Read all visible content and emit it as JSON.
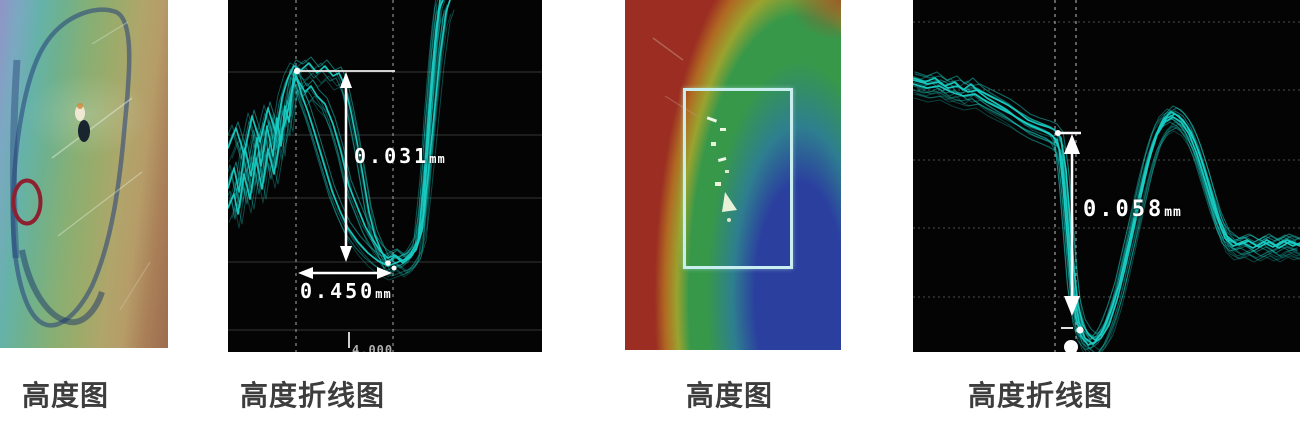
{
  "page": {
    "background": "#ffffff",
    "description_labels": "measurement figure collage"
  },
  "captions": [
    {
      "text": "高度图"
    },
    {
      "text": "高度折线图"
    },
    {
      "text": "高度图"
    },
    {
      "text": "高度折线图"
    }
  ],
  "colors": {
    "trace": "#19cdc4",
    "grid_solid": "#343836",
    "grid_dashed": "#4a4f4d",
    "grid_vline": "#9aa0a0",
    "measure_white": "#ffffff",
    "defect_ellipse_red": "#8e2130",
    "roi_rect_cyan": "#c8eef0",
    "caption_gray": "#3d3d3d"
  },
  "chart_data": [
    {
      "type": "heatmap",
      "title": "高度图",
      "description": "Pseudo-color surface height map of a part; left-to-right color bands from purple/blue through green to tan/brown; dark outline of component visible; red ellipse marks defect location on left edge",
      "annotations": [
        {
          "kind": "defect-ellipse",
          "color": "#8e2130"
        }
      ]
    },
    {
      "type": "line",
      "svg": "profile-svg-left",
      "title": "高度折线图",
      "description": "Overlaid cyan surface-height profile traces across a groove defect on black background; step depth and groove width are annotated",
      "trace_color": "#19cdc4",
      "grid": {
        "h_solid": [
          72,
          135,
          198,
          262,
          330
        ],
        "v_dashed": [
          68,
          165
        ],
        "color_solid": "#343836",
        "color_dashed": "#4a4f4d",
        "color_vline": "#8a8f8d"
      },
      "measurements": [
        {
          "kind": "vertical-step-height",
          "value": "0.031",
          "unit": "mm"
        },
        {
          "kind": "horizontal-width",
          "value": "0.450",
          "unit": "mm"
        }
      ],
      "x_tick_label": "4.000",
      "traces": [
        [
          [
            0,
            188
          ],
          [
            6,
            168
          ],
          [
            11,
            192
          ],
          [
            17,
            148
          ],
          [
            23,
            176
          ],
          [
            29,
            138
          ],
          [
            33,
            166
          ],
          [
            39,
            126
          ],
          [
            45,
            156
          ],
          [
            49,
            118
          ],
          [
            53,
            146
          ],
          [
            57,
            106
          ],
          [
            61,
            122
          ],
          [
            66,
            72
          ],
          [
            71,
            82
          ],
          [
            77,
            92
          ],
          [
            83,
            86
          ],
          [
            89,
            96
          ],
          [
            97,
            104
          ],
          [
            105,
            124
          ],
          [
            113,
            152
          ],
          [
            121,
            186
          ],
          [
            129,
            206
          ],
          [
            137,
            226
          ],
          [
            145,
            240
          ],
          [
            153,
            252
          ],
          [
            160,
            258
          ],
          [
            167,
            255
          ],
          [
            175,
            261
          ],
          [
            183,
            253
          ],
          [
            190,
            241
          ],
          [
            196,
            182
          ],
          [
            200,
            122
          ],
          [
            204,
            72
          ],
          [
            208,
            30
          ],
          [
            212,
            0
          ]
        ],
        [
          [
            0,
            148
          ],
          [
            8,
            128
          ],
          [
            16,
            154
          ],
          [
            24,
            116
          ],
          [
            32,
            142
          ],
          [
            40,
            108
          ],
          [
            48,
            134
          ],
          [
            54,
            98
          ],
          [
            60,
            78
          ],
          [
            66,
            66
          ],
          [
            73,
            70
          ],
          [
            81,
            63
          ],
          [
            89,
            73
          ],
          [
            97,
            66
          ],
          [
            105,
            76
          ],
          [
            111,
            73
          ],
          [
            117,
            86
          ],
          [
            123,
            112
          ],
          [
            129,
            142
          ],
          [
            135,
            176
          ],
          [
            141,
            212
          ],
          [
            147,
            236
          ],
          [
            153,
            250
          ],
          [
            159,
            263
          ],
          [
            167,
            256
          ],
          [
            175,
            263
          ],
          [
            183,
            257
          ],
          [
            189,
            247
          ],
          [
            195,
            216
          ],
          [
            199,
            160
          ],
          [
            203,
            100
          ],
          [
            207,
            46
          ],
          [
            211,
            10
          ],
          [
            215,
            0
          ]
        ],
        [
          [
            0,
            208
          ],
          [
            6,
            194
          ],
          [
            10,
            214
          ],
          [
            16,
            174
          ],
          [
            22,
            199
          ],
          [
            28,
            158
          ],
          [
            34,
            189
          ],
          [
            40,
            149
          ],
          [
            46,
            174
          ],
          [
            52,
            139
          ],
          [
            58,
            119
          ],
          [
            64,
            90
          ],
          [
            68,
            76
          ],
          [
            74,
            96
          ],
          [
            80,
            112
          ],
          [
            86,
            131
          ],
          [
            92,
            151
          ],
          [
            98,
            171
          ],
          [
            104,
            191
          ],
          [
            112,
            211
          ],
          [
            120,
            228
          ],
          [
            130,
            242
          ],
          [
            140,
            253
          ],
          [
            150,
            261
          ],
          [
            160,
            266
          ],
          [
            170,
            262
          ],
          [
            180,
            258
          ],
          [
            188,
            250
          ],
          [
            194,
            231
          ],
          [
            200,
            176
          ],
          [
            206,
            116
          ],
          [
            212,
            56
          ],
          [
            218,
            12
          ],
          [
            222,
            0
          ]
        ]
      ]
    },
    {
      "type": "heatmap",
      "title": "高度图",
      "description": "Pseudo-color surface height map; red region on left arcs through yellow and green to blue basin at lower right; pale cyan rectangle marks region of interest containing bright defect specks",
      "annotations": [
        {
          "kind": "roi-rectangle",
          "color": "#c8eef0"
        }
      ]
    },
    {
      "type": "line",
      "svg": "profile-svg-right",
      "title": "高度折线图",
      "description": "Overlaid cyan surface-height profile traces across a pit defect on black background; step depth annotated",
      "trace_color": "#19cdc4",
      "grid": {
        "h_dashed": [
          22,
          90,
          160,
          228,
          297
        ],
        "v_dashed": [
          142,
          163
        ],
        "color_dashed": "#4a4f4d",
        "color_vline": "#9aa0a0"
      },
      "measurements": [
        {
          "kind": "vertical-step-height",
          "value": "0.058",
          "unit": "mm"
        }
      ],
      "traces": [
        [
          [
            0,
            80
          ],
          [
            15,
            84
          ],
          [
            25,
            82
          ],
          [
            35,
            88
          ],
          [
            45,
            86
          ],
          [
            55,
            92
          ],
          [
            65,
            90
          ],
          [
            75,
            95
          ],
          [
            85,
            100
          ],
          [
            95,
            105
          ],
          [
            105,
            112
          ],
          [
            115,
            120
          ],
          [
            125,
            124
          ],
          [
            135,
            127
          ],
          [
            142,
            130
          ],
          [
            148,
            138
          ],
          [
            153,
            170
          ],
          [
            157,
            220
          ],
          [
            161,
            270
          ],
          [
            165,
            305
          ],
          [
            170,
            325
          ],
          [
            176,
            335
          ],
          [
            182,
            340
          ],
          [
            188,
            335
          ],
          [
            194,
            322
          ],
          [
            200,
            305
          ],
          [
            207,
            282
          ],
          [
            214,
            252
          ],
          [
            222,
            215
          ],
          [
            230,
            180
          ],
          [
            238,
            150
          ],
          [
            246,
            128
          ],
          [
            254,
            118
          ],
          [
            262,
            114
          ],
          [
            270,
            120
          ],
          [
            278,
            132
          ],
          [
            286,
            152
          ],
          [
            294,
            178
          ],
          [
            300,
            200
          ],
          [
            306,
            222
          ],
          [
            312,
            238
          ],
          [
            320,
            246
          ],
          [
            330,
            243
          ],
          [
            340,
            248
          ],
          [
            350,
            242
          ],
          [
            360,
            247
          ],
          [
            370,
            241
          ],
          [
            380,
            246
          ],
          [
            387,
            243
          ]
        ],
        [
          [
            0,
            78
          ],
          [
            12,
            82
          ],
          [
            22,
            78
          ],
          [
            32,
            86
          ],
          [
            42,
            82
          ],
          [
            50,
            90
          ],
          [
            58,
            84
          ],
          [
            66,
            92
          ],
          [
            74,
            98
          ],
          [
            84,
            104
          ],
          [
            94,
            110
          ],
          [
            104,
            118
          ],
          [
            114,
            124
          ],
          [
            124,
            128
          ],
          [
            132,
            132
          ],
          [
            140,
            136
          ],
          [
            146,
            148
          ],
          [
            150,
            185
          ],
          [
            154,
            235
          ],
          [
            158,
            285
          ],
          [
            163,
            318
          ],
          [
            168,
            336
          ],
          [
            175,
            345
          ],
          [
            182,
            342
          ],
          [
            190,
            330
          ],
          [
            198,
            310
          ],
          [
            206,
            285
          ],
          [
            214,
            250
          ],
          [
            224,
            210
          ],
          [
            234,
            168
          ],
          [
            242,
            138
          ],
          [
            250,
            120
          ],
          [
            258,
            112
          ],
          [
            266,
            116
          ],
          [
            274,
            126
          ],
          [
            282,
            142
          ],
          [
            290,
            165
          ],
          [
            298,
            192
          ],
          [
            306,
            218
          ],
          [
            314,
            236
          ],
          [
            324,
            244
          ],
          [
            334,
            240
          ],
          [
            344,
            246
          ],
          [
            354,
            240
          ],
          [
            364,
            246
          ],
          [
            374,
            240
          ],
          [
            387,
            245
          ]
        ],
        [
          [
            0,
            84
          ],
          [
            14,
            88
          ],
          [
            26,
            86
          ],
          [
            38,
            92
          ],
          [
            50,
            96
          ],
          [
            62,
            94
          ],
          [
            74,
            102
          ],
          [
            86,
            108
          ],
          [
            98,
            114
          ],
          [
            108,
            120
          ],
          [
            118,
            126
          ],
          [
            128,
            130
          ],
          [
            136,
            133
          ],
          [
            144,
            140
          ],
          [
            149,
            160
          ],
          [
            153,
            200
          ],
          [
            157,
            250
          ],
          [
            161,
            295
          ],
          [
            166,
            322
          ],
          [
            172,
            338
          ],
          [
            180,
            344
          ],
          [
            188,
            338
          ],
          [
            196,
            325
          ],
          [
            204,
            300
          ],
          [
            212,
            268
          ],
          [
            220,
            232
          ],
          [
            228,
            195
          ],
          [
            236,
            160
          ],
          [
            244,
            135
          ],
          [
            252,
            122
          ],
          [
            260,
            117
          ],
          [
            268,
            122
          ],
          [
            276,
            134
          ],
          [
            284,
            154
          ],
          [
            292,
            180
          ],
          [
            300,
            206
          ],
          [
            308,
            228
          ],
          [
            316,
            240
          ],
          [
            326,
            245
          ],
          [
            336,
            241
          ],
          [
            346,
            247
          ],
          [
            356,
            242
          ],
          [
            366,
            248
          ],
          [
            376,
            242
          ],
          [
            387,
            246
          ]
        ]
      ]
    }
  ]
}
